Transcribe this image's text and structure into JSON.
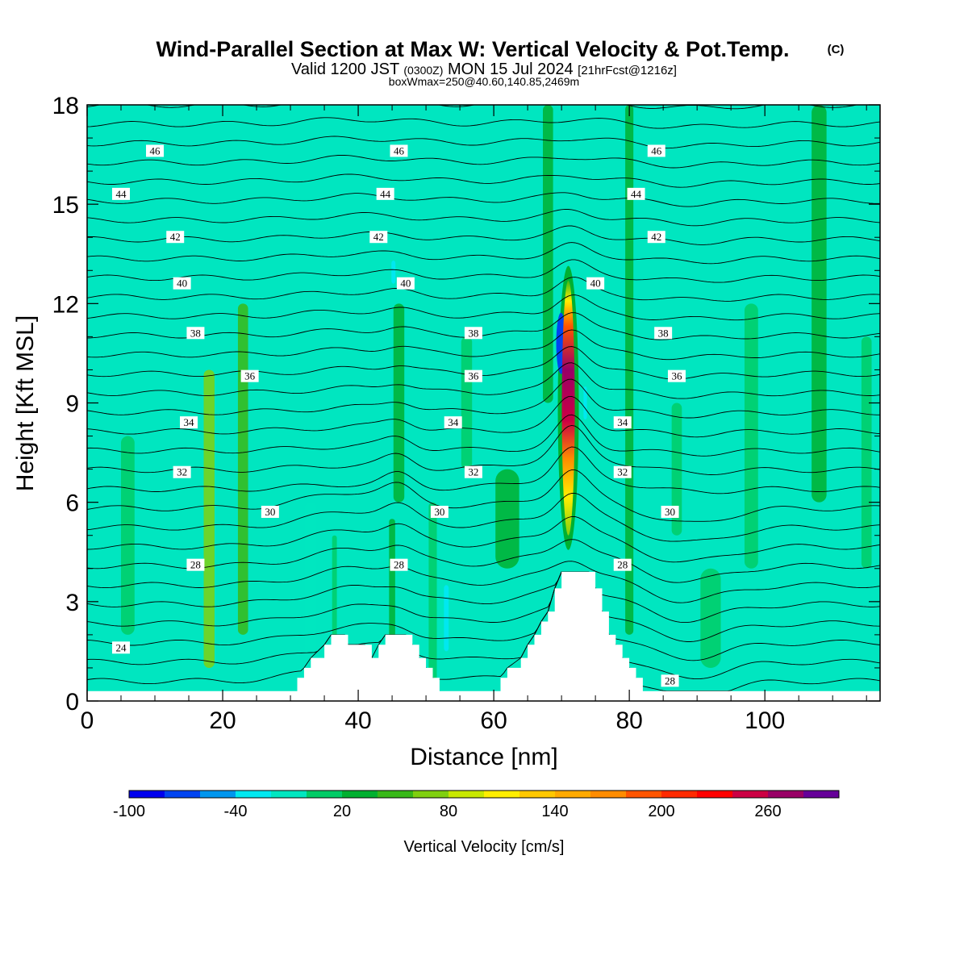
{
  "title": "Wind-Parallel Section at Max W: Vertical Velocity & Pot.Temp.",
  "title_mark": "(C)",
  "subtitle": {
    "valid": "Valid 1200 JST",
    "utc": "(0300Z)",
    "date": "MON 15 Jul 2024",
    "fcst": "[21hrFcst@1216z]"
  },
  "box_note": "boxWmax=250@40.60,140.85,2469m",
  "chart_data": {
    "type": "heatmap",
    "xlabel": "Distance [nm]",
    "ylabel": "Height [Kft MSL]",
    "xlim": [
      0,
      117
    ],
    "ylim": [
      0,
      18
    ],
    "x_ticks": [
      "0",
      "20",
      "40",
      "60",
      "80",
      "100"
    ],
    "y_ticks": [
      "0",
      "3",
      "6",
      "9",
      "12",
      "15",
      "18"
    ],
    "colorbar": {
      "label": "Vertical Velocity [cm/s]",
      "range": [
        -100,
        300
      ],
      "step": 20,
      "tick_labels": [
        "-100",
        "-40",
        "20",
        "80",
        "140",
        "200",
        "260"
      ],
      "colors": [
        "#0000ee",
        "#0044f0",
        "#0096ee",
        "#00e8f0",
        "#00e6c0",
        "#00cc66",
        "#00b030",
        "#38b818",
        "#80d010",
        "#c8e800",
        "#ffee00",
        "#ffc800",
        "#ffaa00",
        "#ff8c00",
        "#ff5500",
        "#ff2a00",
        "#ff0000",
        "#cc0044",
        "#990066",
        "#660099"
      ]
    },
    "background_value_cms": 0,
    "w_maximum": {
      "distance_nm": 71,
      "height_kft": 9,
      "value_cms": 250
    },
    "updraft_core": {
      "distance_nm": 71,
      "bottom_kft": 5,
      "top_kft": 12.7
    },
    "terrain_kft": [
      [
        0,
        0.3
      ],
      [
        30,
        0.3
      ],
      [
        31,
        0.7
      ],
      [
        32,
        1.0
      ],
      [
        33,
        1.3
      ],
      [
        35,
        1.7
      ],
      [
        36,
        2.0
      ],
      [
        38,
        2.0
      ],
      [
        38.5,
        1.7
      ],
      [
        41,
        1.7
      ],
      [
        42,
        1.3
      ],
      [
        43,
        1.7
      ],
      [
        44,
        2.0
      ],
      [
        47,
        2.0
      ],
      [
        48,
        1.7
      ],
      [
        49,
        1.3
      ],
      [
        50,
        1.0
      ],
      [
        51,
        0.7
      ],
      [
        52,
        0.3
      ],
      [
        60,
        0.3
      ],
      [
        61,
        0.7
      ],
      [
        62,
        1.0
      ],
      [
        64,
        1.3
      ],
      [
        65,
        1.7
      ],
      [
        66,
        2.0
      ],
      [
        67,
        2.4
      ],
      [
        68,
        2.7
      ],
      [
        69,
        3.4
      ],
      [
        70,
        3.9
      ],
      [
        74,
        3.9
      ],
      [
        75,
        3.4
      ],
      [
        76,
        2.7
      ],
      [
        77,
        2.0
      ],
      [
        78,
        1.7
      ],
      [
        79,
        1.3
      ],
      [
        80,
        1.0
      ],
      [
        81,
        0.7
      ],
      [
        82,
        0.3
      ],
      [
        117,
        0.3
      ]
    ],
    "theta_levels": [
      {
        "label": "46",
        "height_kft": 16.6,
        "label_at_nm": [
          10,
          46,
          84
        ]
      },
      {
        "label": "44",
        "height_kft": 15.3,
        "label_at_nm": [
          5,
          44,
          81
        ]
      },
      {
        "label": "42",
        "height_kft": 14.0,
        "label_at_nm": [
          13,
          43,
          84
        ]
      },
      {
        "label": "40",
        "height_kft": 12.6,
        "label_at_nm": [
          14,
          47,
          75
        ]
      },
      {
        "label": "38",
        "height_kft": 11.1,
        "label_at_nm": [
          16,
          57,
          85
        ]
      },
      {
        "label": "36",
        "height_kft": 9.8,
        "label_at_nm": [
          24,
          57,
          87
        ]
      },
      {
        "label": "34",
        "height_kft": 8.4,
        "label_at_nm": [
          15,
          54,
          79
        ]
      },
      {
        "label": "32",
        "height_kft": 6.9,
        "label_at_nm": [
          14,
          57,
          79
        ]
      },
      {
        "label": "30",
        "height_kft": 5.7,
        "label_at_nm": [
          27,
          52,
          86
        ]
      },
      {
        "label": "28",
        "height_kft": 4.1,
        "label_at_nm": [
          16,
          46,
          79
        ]
      },
      {
        "label": "24",
        "height_kft": 1.6,
        "label_at_nm": [
          5
        ]
      },
      {
        "label": "28",
        "height_kft": 0.6,
        "label_at_nm": [
          86
        ]
      }
    ],
    "grid": false,
    "legend": "colorbar-bottom"
  }
}
